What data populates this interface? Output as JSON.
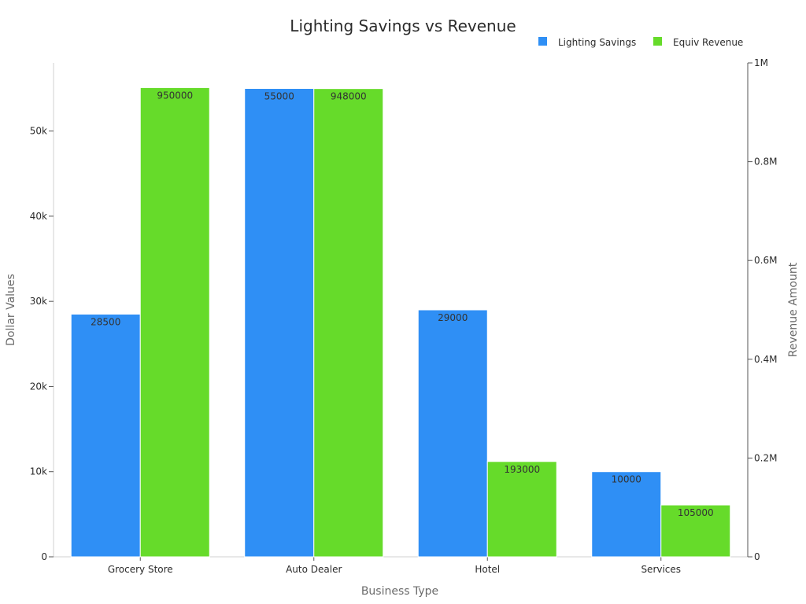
{
  "chart_data": {
    "type": "bar",
    "title": "Lighting Savings vs Revenue",
    "xlabel": "Business Type",
    "ylabel_left": "Dollar Values",
    "ylabel_right": "Revenue Amount",
    "categories": [
      "Grocery Store",
      "Auto Dealer",
      "Hotel",
      "Services"
    ],
    "series": [
      {
        "name": "Lighting Savings",
        "axis": "left",
        "color": "#2f8ff5",
        "values": [
          28500,
          55000,
          29000,
          10000
        ],
        "labels": [
          "28500",
          "55000",
          "29000",
          "10000"
        ]
      },
      {
        "name": "Equiv Revenue",
        "axis": "right",
        "color": "#66db2a",
        "values": [
          950000,
          948000,
          193000,
          105000
        ],
        "labels": [
          "950000",
          "948000",
          "193000",
          "105000"
        ]
      }
    ],
    "ylim_left": [
      0,
      58000
    ],
    "ylim_right": [
      0,
      1000000
    ],
    "yticks_left": [
      {
        "value": 0,
        "label": "0"
      },
      {
        "value": 10000,
        "label": "10k"
      },
      {
        "value": 20000,
        "label": "20k"
      },
      {
        "value": 30000,
        "label": "30k"
      },
      {
        "value": 40000,
        "label": "40k"
      },
      {
        "value": 50000,
        "label": "50k"
      }
    ],
    "yticks_right": [
      {
        "value": 0,
        "label": "0"
      },
      {
        "value": 200000,
        "label": "0.2M"
      },
      {
        "value": 400000,
        "label": "0.4M"
      },
      {
        "value": 600000,
        "label": "0.6M"
      },
      {
        "value": 800000,
        "label": "0.8M"
      },
      {
        "value": 1000000,
        "label": "1M"
      }
    ],
    "legend": "top-right",
    "grid": false
  }
}
